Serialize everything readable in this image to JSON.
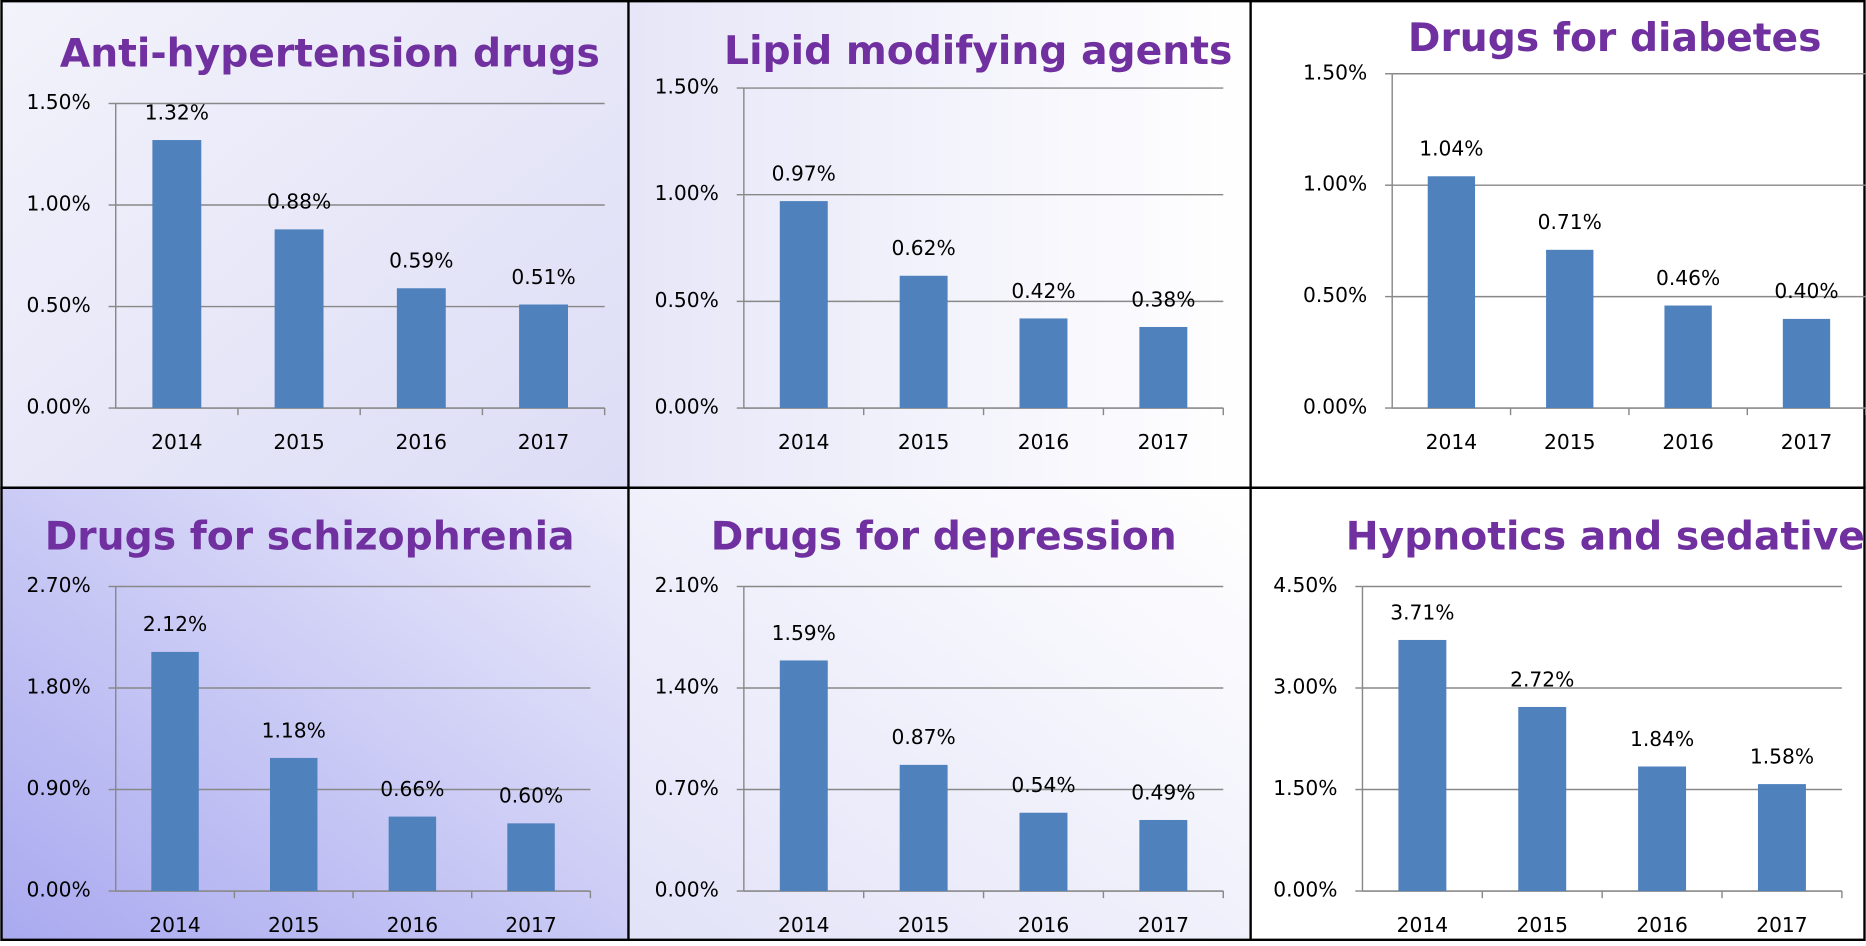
{
  "chart_data": [
    {
      "type": "bar",
      "title": "Anti-hypertension drugs",
      "categories": [
        "2014",
        "2015",
        "2016",
        "2017"
      ],
      "values": [
        1.32,
        0.88,
        0.59,
        0.51
      ],
      "value_labels": [
        "1.32%",
        "0.88%",
        "0.59%",
        "0.51%"
      ],
      "color": "#4f81bd",
      "ylim": [
        0,
        1.5
      ],
      "yticks": [
        {
          "value": 0,
          "label": "0.00%"
        },
        {
          "value": 0.5,
          "label": "0.50%"
        },
        {
          "value": 1,
          "label": "1.00%"
        },
        {
          "value": 1.5,
          "label": "1.50%"
        }
      ],
      "grid": true
    },
    {
      "type": "bar",
      "title": "Lipid modifying agents",
      "categories": [
        "2014",
        "2015",
        "2016",
        "2017"
      ],
      "values": [
        0.97,
        0.62,
        0.42,
        0.38
      ],
      "value_labels": [
        "0.97%",
        "0.62%",
        "0.42%",
        "0.38%"
      ],
      "color": "#4f81bd",
      "ylim": [
        0,
        1.5
      ],
      "yticks": [
        {
          "value": 0,
          "label": "0.00%"
        },
        {
          "value": 0.5,
          "label": "0.50%"
        },
        {
          "value": 1,
          "label": "1.00%"
        },
        {
          "value": 1.5,
          "label": "1.50%"
        }
      ],
      "grid": true
    },
    {
      "type": "bar",
      "title": "Drugs for diabetes",
      "categories": [
        "2014",
        "2015",
        "2016",
        "2017"
      ],
      "values": [
        1.04,
        0.71,
        0.46,
        0.4
      ],
      "value_labels": [
        "1.04%",
        "0.71%",
        "0.46%",
        "0.40%"
      ],
      "color": "#4f81bd",
      "ylim": [
        0,
        1.5
      ],
      "yticks": [
        {
          "value": 0,
          "label": "0.00%"
        },
        {
          "value": 0.5,
          "label": "0.50%"
        },
        {
          "value": 1,
          "label": "1.00%"
        },
        {
          "value": 1.5,
          "label": "1.50%"
        }
      ],
      "grid": true
    },
    {
      "type": "bar",
      "title": "Drugs for schizophrenia",
      "categories": [
        "2014",
        "2015",
        "2016",
        "2017"
      ],
      "values": [
        2.12,
        1.18,
        0.66,
        0.6
      ],
      "value_labels": [
        "2.12%",
        "1.18%",
        "0.66%",
        "0.60%"
      ],
      "color": "#4f81bd",
      "ylim": [
        0,
        2.7
      ],
      "yticks": [
        {
          "value": 0,
          "label": "0.00%"
        },
        {
          "value": 0.9,
          "label": "0.90%"
        },
        {
          "value": 1.8,
          "label": "1.80%"
        },
        {
          "value": 2.7,
          "label": "2.70%"
        }
      ],
      "grid": true
    },
    {
      "type": "bar",
      "title": "Drugs for depression",
      "categories": [
        "2014",
        "2015",
        "2016",
        "2017"
      ],
      "values": [
        1.59,
        0.87,
        0.54,
        0.49
      ],
      "value_labels": [
        "1.59%",
        "0.87%",
        "0.54%",
        "0.49%"
      ],
      "color": "#4f81bd",
      "ylim": [
        0,
        2.1
      ],
      "yticks": [
        {
          "value": 0,
          "label": "0.00%"
        },
        {
          "value": 0.7,
          "label": "0.70%"
        },
        {
          "value": 1.4,
          "label": "1.40%"
        },
        {
          "value": 2.1,
          "label": "2.10%"
        }
      ],
      "grid": true
    },
    {
      "type": "bar",
      "title": "Hypnotics and sedatives",
      "categories": [
        "2014",
        "2015",
        "2016",
        "2017"
      ],
      "values": [
        3.71,
        2.72,
        1.84,
        1.58
      ],
      "value_labels": [
        "3.71%",
        "2.72%",
        "1.84%",
        "1.58%"
      ],
      "color": "#4f81bd",
      "ylim": [
        0,
        4.5
      ],
      "yticks": [
        {
          "value": 0,
          "label": "0.00%"
        },
        {
          "value": 1.5,
          "label": "1.50%"
        },
        {
          "value": 3,
          "label": "3.00%"
        },
        {
          "value": 4.5,
          "label": "4.50%"
        }
      ],
      "grid": true
    }
  ]
}
